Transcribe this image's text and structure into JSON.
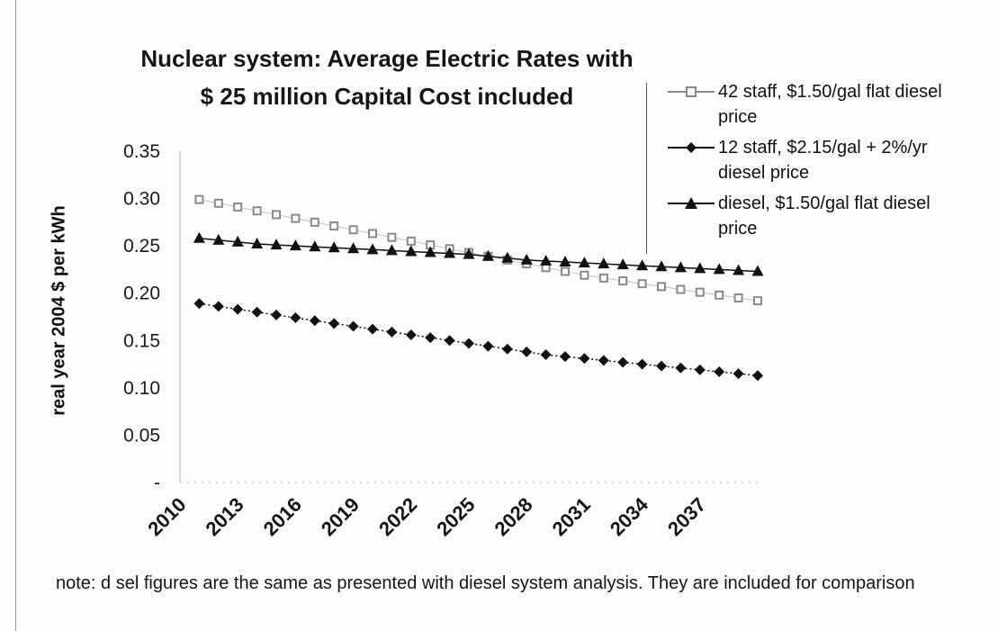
{
  "chart_data": {
    "type": "line",
    "title": "Nuclear system: Average Electric Rates with",
    "subtitle": "$ 25 million Capital Cost included",
    "ylabel": "real year 2004 $ per kWh",
    "xlabel": "",
    "ylim": [
      0,
      0.35
    ],
    "y_ticks": [
      "0.35",
      "0.30",
      "0.25",
      "0.20",
      "0.15",
      "0.10",
      "0.05",
      "-"
    ],
    "x_ticks": [
      "2010",
      "2013",
      "2016",
      "2019",
      "2022",
      "2025",
      "2028",
      "2031",
      "2034",
      "2037"
    ],
    "x": [
      2011,
      2012,
      2013,
      2014,
      2015,
      2016,
      2017,
      2018,
      2019,
      2020,
      2021,
      2022,
      2023,
      2024,
      2025,
      2026,
      2027,
      2028,
      2029,
      2030,
      2031,
      2032,
      2033,
      2034,
      2035,
      2036,
      2037,
      2038,
      2039,
      2040
    ],
    "grid": false,
    "legend_position": "top-right",
    "series": [
      {
        "name": "42 staff, $1.50/gal flat diesel price",
        "marker": "square-open",
        "color": "#8a8a8a",
        "values": [
          0.299,
          0.295,
          0.291,
          0.287,
          0.283,
          0.279,
          0.275,
          0.271,
          0.267,
          0.263,
          0.259,
          0.255,
          0.251,
          0.247,
          0.243,
          0.239,
          0.235,
          0.231,
          0.227,
          0.223,
          0.219,
          0.216,
          0.213,
          0.21,
          0.207,
          0.204,
          0.201,
          0.198,
          0.195,
          0.192
        ]
      },
      {
        "name": "12 staff, $2.15/gal + 2%/yr diesel price",
        "marker": "diamond",
        "color": "#111111",
        "values": [
          0.189,
          0.186,
          0.183,
          0.18,
          0.177,
          0.174,
          0.171,
          0.168,
          0.165,
          0.162,
          0.159,
          0.156,
          0.153,
          0.15,
          0.147,
          0.144,
          0.141,
          0.138,
          0.135,
          0.133,
          0.131,
          0.129,
          0.127,
          0.125,
          0.123,
          0.121,
          0.119,
          0.117,
          0.115,
          0.113
        ]
      },
      {
        "name": "diesel, $1.50/gal flat diesel price",
        "marker": "triangle",
        "color": "#111111",
        "values": [
          0.258,
          0.256,
          0.254,
          0.252,
          0.251,
          0.25,
          0.249,
          0.248,
          0.247,
          0.246,
          0.245,
          0.244,
          0.243,
          0.242,
          0.241,
          0.239,
          0.237,
          0.235,
          0.234,
          0.233,
          0.232,
          0.231,
          0.23,
          0.229,
          0.228,
          0.227,
          0.226,
          0.225,
          0.224,
          0.223
        ]
      }
    ],
    "legend_entries": [
      {
        "line1": "42 staff, $1.50/gal flat diesel",
        "line2": "price"
      },
      {
        "line1": "12 staff, $2.15/gal + 2%/yr",
        "line2": "diesel price"
      },
      {
        "line1": "diesel, $1.50/gal flat diesel",
        "line2": "price"
      }
    ]
  },
  "note": "note: d sel figures are the same as presented with diesel system analysis. They are included for comparison"
}
